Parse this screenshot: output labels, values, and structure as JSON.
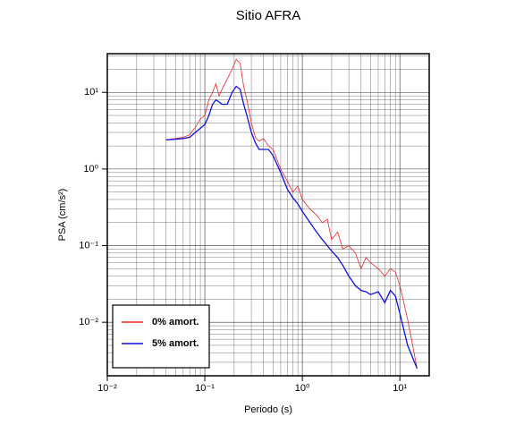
{
  "chart_data": {
    "type": "line",
    "title": "Sitio AFRA",
    "x_label": "Periodo (s)",
    "y_label": "PSA (cm/s²)",
    "xscale": "log",
    "yscale": "log",
    "grid": true,
    "legend": "lower left",
    "xlim": [
      0.01,
      20
    ],
    "ylim": [
      0.002,
      32
    ],
    "xticks": [
      {
        "value": 0.01,
        "label": "10⁻²"
      },
      {
        "value": 0.1,
        "label": "10⁻¹"
      },
      {
        "value": 1,
        "label": "10⁰"
      },
      {
        "value": 10,
        "label": "10¹"
      }
    ],
    "yticks": [
      {
        "value": 0.01,
        "label": "10⁻²"
      },
      {
        "value": 0.1,
        "label": "10⁻¹"
      },
      {
        "value": 1,
        "label": "10⁰"
      },
      {
        "value": 10,
        "label": "10¹"
      }
    ],
    "xminorticks": [
      0.02,
      0.03,
      0.04,
      0.05,
      0.06,
      0.07,
      0.08,
      0.09,
      0.2,
      0.3,
      0.4,
      0.5,
      0.6,
      0.7,
      0.8,
      0.9,
      2,
      3,
      4,
      5,
      6,
      7,
      8,
      9
    ],
    "yminorticks": [
      0.003,
      0.004,
      0.005,
      0.006,
      0.007,
      0.008,
      0.009,
      0.02,
      0.03,
      0.04,
      0.05,
      0.06,
      0.07,
      0.08,
      0.09,
      0.2,
      0.3,
      0.4,
      0.5,
      0.6,
      0.7,
      0.8,
      0.9,
      2,
      3,
      4,
      5,
      6,
      7,
      8,
      9,
      20,
      30
    ],
    "x": [
      0.04,
      0.05,
      0.06,
      0.07,
      0.08,
      0.09,
      0.1,
      0.11,
      0.12,
      0.13,
      0.14,
      0.15,
      0.17,
      0.19,
      0.21,
      0.23,
      0.25,
      0.27,
      0.3,
      0.33,
      0.36,
      0.4,
      0.45,
      0.5,
      0.6,
      0.7,
      0.8,
      0.9,
      1.0,
      1.2,
      1.4,
      1.6,
      1.8,
      2.0,
      2.3,
      2.6,
      3.0,
      3.5,
      4.0,
      4.5,
      5.0,
      6,
      7,
      8,
      9,
      10,
      12,
      15
    ],
    "series": [
      {
        "name": "0% amort.",
        "color": "#e8262a",
        "width": 0.8,
        "values": [
          2.4,
          2.5,
          2.6,
          2.8,
          3.5,
          4.5,
          5,
          8,
          10,
          13,
          9,
          11,
          15,
          20,
          27,
          24,
          12,
          8,
          4,
          2.6,
          2.3,
          2.5,
          2,
          1.8,
          1,
          0.7,
          0.5,
          0.6,
          0.4,
          0.3,
          0.25,
          0.2,
          0.22,
          0.12,
          0.15,
          0.09,
          0.1,
          0.08,
          0.05,
          0.07,
          0.06,
          0.05,
          0.04,
          0.05,
          0.045,
          0.03,
          0.011,
          0.0025
        ]
      },
      {
        "name": "5% amort.",
        "color": "#1010e0",
        "width": 1.3,
        "values": [
          2.4,
          2.45,
          2.5,
          2.6,
          3.0,
          3.4,
          3.8,
          5,
          7,
          8,
          7.5,
          7,
          7,
          10,
          12,
          11,
          7,
          5,
          3,
          2.2,
          1.8,
          1.8,
          1.8,
          1.5,
          0.9,
          0.55,
          0.42,
          0.35,
          0.28,
          0.2,
          0.15,
          0.12,
          0.1,
          0.085,
          0.07,
          0.055,
          0.04,
          0.03,
          0.026,
          0.025,
          0.023,
          0.025,
          0.018,
          0.026,
          0.022,
          0.013,
          0.005,
          0.0025
        ]
      }
    ]
  }
}
